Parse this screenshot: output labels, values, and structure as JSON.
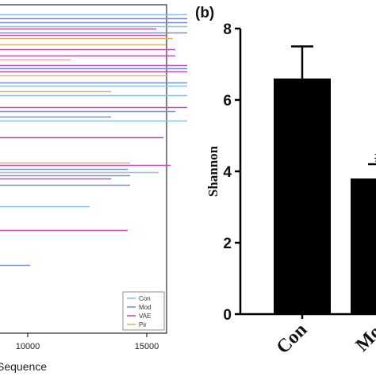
{
  "chart_data": [
    {
      "type": "line",
      "title": "",
      "xlabel": "Sequence",
      "ylabel": "",
      "xlim": [
        4000,
        17800
      ],
      "x_ticks": [
        10000,
        15000
      ],
      "grid": false,
      "legend_position": "bottom-right",
      "legend": [
        {
          "name": "Con",
          "color": "#86c6e0"
        },
        {
          "name": "Mod",
          "color": "#7b8fd0"
        },
        {
          "name": "VAE",
          "color": "#c44fb8"
        },
        {
          "name": "Pir",
          "color": "#e3b460"
        }
      ],
      "series": [
        {
          "name": "Con",
          "color": "#86c6e0",
          "x_end": [
            16700,
            16700,
            16700,
            16700,
            16700,
            15500,
            12600
          ]
        },
        {
          "name": "Mod",
          "color": "#7b8fd0",
          "x_end": [
            16700,
            16700,
            16700,
            16700,
            16700,
            16200,
            13500,
            14200,
            14300,
            14300,
            10100
          ]
        },
        {
          "name": "VAE",
          "color": "#c44fb8",
          "x_end": [
            15400,
            15800,
            16200,
            16200,
            16700,
            16700,
            16700,
            15700,
            16000,
            13500,
            14200
          ]
        },
        {
          "name": "Pir",
          "color": "#e3b460",
          "x_end": [
            16100,
            15800,
            11800,
            15900,
            13500,
            14300
          ]
        }
      ]
    },
    {
      "type": "bar",
      "panel_label": "(b)",
      "title": "",
      "xlabel": "",
      "ylabel": "Shannon",
      "ylim": [
        0,
        8
      ],
      "y_ticks": [
        0,
        2,
        4,
        6,
        8
      ],
      "categories": [
        "Con",
        "Mo"
      ],
      "values": [
        6.6,
        3.8
      ],
      "error_upper": [
        7.5,
        4.2
      ],
      "annotations": [
        "",
        "#"
      ],
      "bar_color": "#000000"
    }
  ]
}
